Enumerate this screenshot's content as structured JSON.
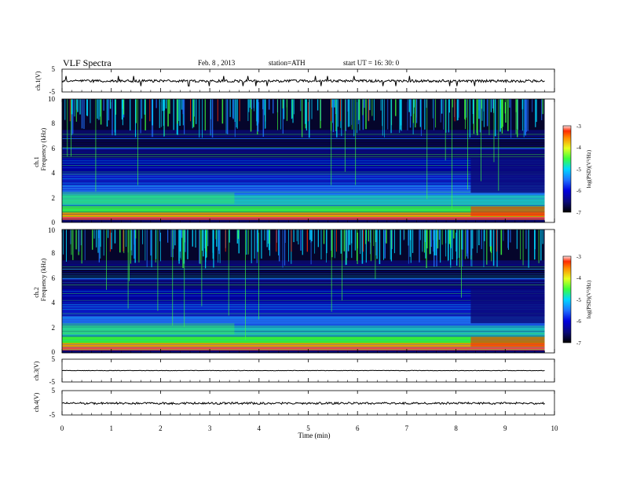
{
  "header": {
    "title": "VLF  Spectra",
    "date": "Feb. 8  , 2013",
    "station": "station=ATH",
    "start": "start  UT  =   16: 30: 0"
  },
  "chart_data": [
    {
      "type": "line",
      "panel": "ch1-waveform",
      "ylabel": "ch.1(V)",
      "yticks": [
        "5",
        "-5"
      ],
      "ylim": [
        -5,
        5
      ],
      "xlim": [
        0,
        10
      ],
      "baseline": -0.2
    },
    {
      "type": "heatmap",
      "panel": "ch1-spectrogram",
      "ylabel": "ch.1\nFrequency  (kHz)",
      "ylabel_ch": "ch.1",
      "ylabel_freq": "Frequency  (kHz)",
      "xlim": [
        0,
        10
      ],
      "data_end_min": 9.8,
      "ylim": [
        0,
        10
      ],
      "yticks": [
        "0",
        "2",
        "4",
        "6",
        "8",
        "10"
      ],
      "colorbar": {
        "label": "log(PSD)(V²/Hz)",
        "ticks": [
          "-3",
          "-4",
          "-5",
          "-6",
          "-7"
        ],
        "range": [
          -7,
          -3
        ]
      }
    },
    {
      "type": "heatmap",
      "panel": "ch2-spectrogram",
      "ylabel": "ch.2\nFrequency  (kHz)",
      "ylabel_ch": "ch.2",
      "ylabel_freq": "Frequency  (kHz)",
      "xlim": [
        0,
        10
      ],
      "data_end_min": 9.8,
      "ylim": [
        0,
        10
      ],
      "yticks": [
        "0",
        "2",
        "4",
        "6",
        "8",
        "10"
      ],
      "colorbar": {
        "label": "log(PSD)(V²/Hz)",
        "ticks": [
          "-3",
          "-4",
          "-5",
          "-6",
          "-7"
        ],
        "range": [
          -7,
          -3
        ]
      }
    },
    {
      "type": "line",
      "panel": "ch3-waveform",
      "ylabel": "ch.3(V)",
      "yticks": [
        "5",
        "-5"
      ],
      "ylim": [
        -5,
        5
      ],
      "xlim": [
        0,
        10
      ],
      "baseline": 0
    },
    {
      "type": "line",
      "panel": "ch4-waveform",
      "ylabel": "ch.4(V)",
      "yticks": [
        "5",
        "-5"
      ],
      "ylim": [
        -5,
        5
      ],
      "xlim": [
        0,
        10
      ],
      "baseline": -0.2
    }
  ],
  "xaxis": {
    "label": "Time  (min)",
    "ticks": [
      "0",
      "1",
      "2",
      "3",
      "4",
      "5",
      "6",
      "7",
      "8",
      "9",
      "10"
    ]
  },
  "colors": {
    "axis": "#000000",
    "background": "#ffffff",
    "colormap": [
      "#000000",
      "#0a0a78",
      "#0000cc",
      "#1f6fff",
      "#00d8ff",
      "#3cff3c",
      "#e6ff1e",
      "#ffaa00",
      "#ff2a00",
      "#ffdede"
    ]
  }
}
